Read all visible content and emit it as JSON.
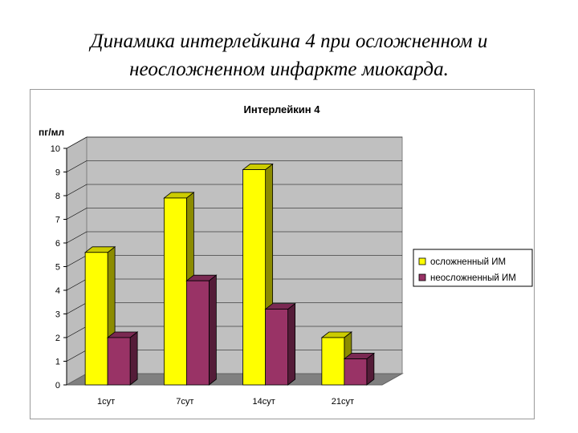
{
  "slide": {
    "title_line1": "Динамика интерлейкина 4 при осложненном и",
    "title_line2": "неосложненном инфаркте миокарда."
  },
  "chart_data": {
    "type": "bar",
    "title": "Интерлейкин 4",
    "ylabel": "пг/мл",
    "xlabel": "",
    "categories": [
      "1сут",
      "7сут",
      "14сут",
      "21сут"
    ],
    "series": [
      {
        "name": "осложненный ИМ",
        "values": [
          5.6,
          7.9,
          9.1,
          2.0
        ],
        "color": "#ffff00"
      },
      {
        "name": "неосложненный ИМ",
        "values": [
          2.0,
          4.4,
          3.2,
          1.1
        ],
        "color": "#993366"
      }
    ],
    "ylim": [
      0,
      10
    ],
    "yticks": [
      "0",
      "1",
      "2",
      "3",
      "4",
      "5",
      "6",
      "7",
      "8",
      "9",
      "10"
    ],
    "grid": true,
    "legend_position": "right",
    "style": "3d-clustered-column",
    "wall_color": "#c0c0c0",
    "floor_color": "#808080"
  }
}
